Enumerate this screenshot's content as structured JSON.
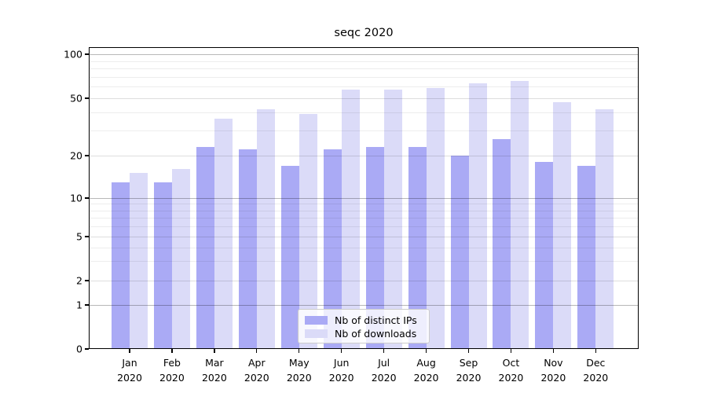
{
  "chart_data": {
    "type": "bar",
    "title": "seqc 2020",
    "x_months": [
      "Jan",
      "Feb",
      "Mar",
      "Apr",
      "May",
      "Jun",
      "Jul",
      "Aug",
      "Sep",
      "Oct",
      "Nov",
      "Dec"
    ],
    "x_year": "2020",
    "categories": [
      "Jan 2020",
      "Feb 2020",
      "Mar 2020",
      "Apr 2020",
      "May 2020",
      "Jun 2020",
      "Jul 2020",
      "Aug 2020",
      "Sep 2020",
      "Oct 2020",
      "Nov 2020",
      "Dec 2020"
    ],
    "series": [
      {
        "name": "Nb of distinct IPs",
        "color": "#aaaaf5",
        "values": [
          13,
          13,
          23,
          22,
          17,
          22,
          23,
          23,
          20,
          26,
          18,
          17
        ]
      },
      {
        "name": "Nb of downloads",
        "color": "#dbdbf8",
        "values": [
          15,
          16,
          36,
          42,
          39,
          57,
          57,
          59,
          63,
          66,
          47,
          42
        ]
      }
    ],
    "y_ticks": [
      100,
      50,
      20,
      10,
      5,
      2,
      1,
      0
    ],
    "y_major_gridlines": [
      1,
      10,
      100
    ],
    "y_mid_gridlines": [
      2,
      5,
      20,
      50
    ],
    "y_minor_gridlines": [
      3,
      4,
      6,
      7,
      8,
      9,
      30,
      40,
      60,
      70,
      80,
      90
    ],
    "y_scale": "symlog",
    "ylim": [
      0,
      118
    ],
    "grid": "horizontal",
    "legend_position": "lower center"
  }
}
